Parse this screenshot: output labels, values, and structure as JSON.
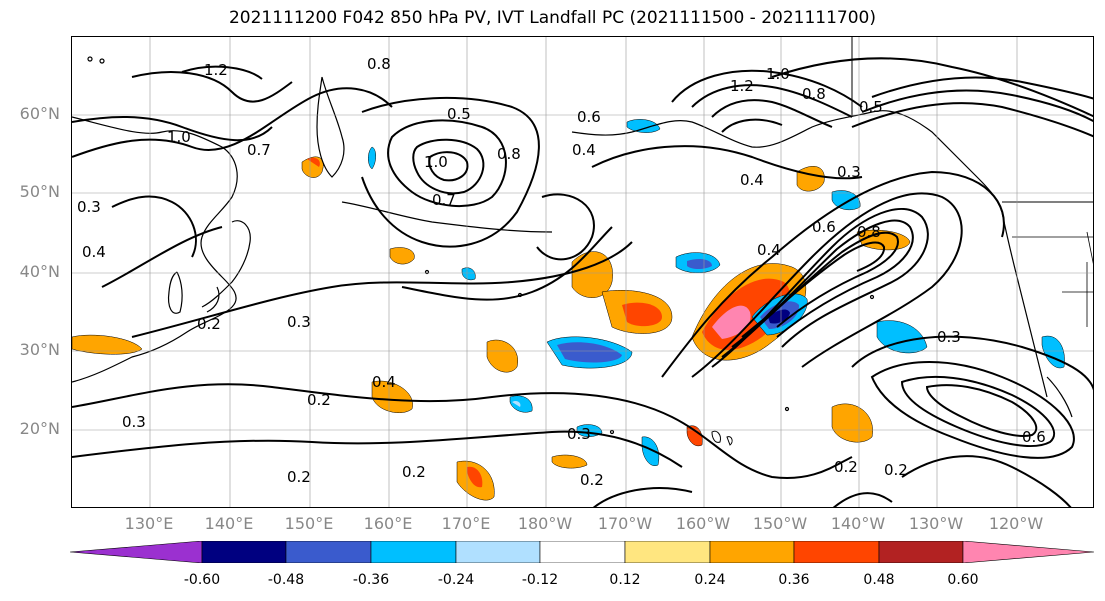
{
  "title": "2021111200 F042 850 hPa PV, IVT Landfall PC (2021111500 - 2021111700)",
  "lat_labels": [
    "60°N",
    "50°N",
    "40°N",
    "30°N",
    "20°N"
  ],
  "lon_labels": [
    "130°E",
    "140°E",
    "150°E",
    "160°E",
    "170°E",
    "180°W",
    "170°W",
    "160°W",
    "150°W",
    "140°W",
    "130°W",
    "120°W"
  ],
  "contour_labels": [
    "1.2",
    "1.0",
    "0.8",
    "0.7",
    "0.6",
    "0.5",
    "0.4",
    "0.3",
    "0.2"
  ],
  "colorbar": {
    "ticks": [
      "-0.60",
      "-0.48",
      "-0.36",
      "-0.24",
      "-0.12",
      "0.12",
      "0.24",
      "0.36",
      "0.48",
      "0.60"
    ],
    "colors": [
      "#9b30d0",
      "#000080",
      "#3a5bcd",
      "#00bfff",
      "#b0e0ff",
      "#ffffff",
      "#ffe680",
      "#ffa500",
      "#ff4500",
      "#b22222",
      "#ff85b0"
    ]
  },
  "colors": {
    "land_outline": "#000000",
    "grid": "#999999",
    "contour": "#000000"
  }
}
